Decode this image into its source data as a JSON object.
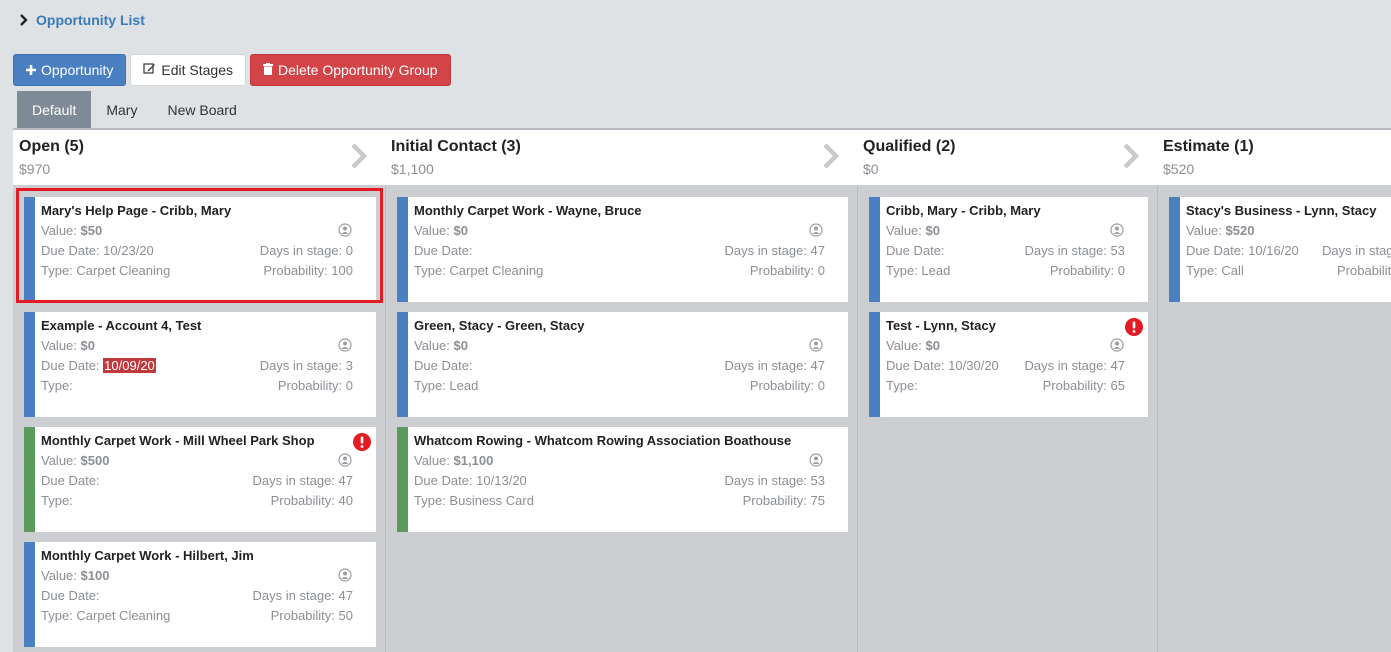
{
  "header": {
    "title": "Opportunity List",
    "toggle_icon": "chevron-right-icon"
  },
  "toolbar": {
    "add_opportunity": "Opportunity",
    "edit_stages": "Edit Stages",
    "delete_group": "Delete Opportunity Group"
  },
  "tabs": [
    {
      "label": "Default",
      "active": true
    },
    {
      "label": "Mary",
      "active": false
    },
    {
      "label": "New Board",
      "active": false
    }
  ],
  "stages": [
    {
      "name": "Open (5)",
      "total": "$970"
    },
    {
      "name": "Initial Contact (3)",
      "total": "$1,100"
    },
    {
      "name": "Qualified (2)",
      "total": "$0"
    },
    {
      "name": "Estimate (1)",
      "total": "$520"
    }
  ],
  "labels": {
    "value": "Value:",
    "due_date": "Due Date:",
    "type": "Type:",
    "days_in_stage": "Days in stage:",
    "probability": "Probability:"
  },
  "cards": {
    "c1": {
      "title": "Mary's Help Page - Cribb, Mary",
      "value": "$50",
      "due": "10/23/20",
      "days": "0",
      "type": "Carpet Cleaning",
      "probability": "100",
      "stripe": "#4a7fc1",
      "selected": true
    },
    "c2": {
      "title": "Example - Account 4, Test",
      "value": "$0",
      "due": "10/09/20",
      "due_overdue": true,
      "days": "3",
      "type": "",
      "probability": "0",
      "stripe": "#4a7fc1"
    },
    "c3": {
      "title": "Monthly Carpet Work - Mill Wheel Park Shop",
      "value": "$500",
      "due": "",
      "days": "47",
      "type": "",
      "probability": "40",
      "stripe": "#5a9a5a",
      "alert": true
    },
    "c4": {
      "title": "Monthly Carpet Work - Hilbert, Jim",
      "value": "$100",
      "due": "",
      "days": "47",
      "type": "Carpet Cleaning",
      "probability": "50",
      "stripe": "#4a7fc1"
    },
    "c5": {
      "title": "Monthly Carpet Work - Wayne, Bruce",
      "value": "$0",
      "due": "",
      "days": "47",
      "type": "Carpet Cleaning",
      "probability": "0",
      "stripe": "#4a7fc1"
    },
    "c6": {
      "title": "Green, Stacy - Green, Stacy",
      "value": "$0",
      "due": "",
      "days": "47",
      "type": "Lead",
      "probability": "0",
      "stripe": "#4a7fc1"
    },
    "c7": {
      "title": "Whatcom Rowing - Whatcom Rowing Association Boathouse",
      "value": "$1,100",
      "due": "10/13/20",
      "days": "53",
      "type": "Business Card",
      "probability": "75",
      "stripe": "#5a9a5a"
    },
    "c8": {
      "title": "Cribb, Mary - Cribb, Mary",
      "value": "$0",
      "due": "",
      "days": "53",
      "type": "Lead",
      "probability": "0",
      "stripe": "#4a7fc1"
    },
    "c9": {
      "title": "Test - Lynn, Stacy",
      "value": "$0",
      "due": "10/30/20",
      "days": "47",
      "type": "",
      "probability": "65",
      "stripe": "#4a7fc1",
      "alert": true
    },
    "c10": {
      "title": "Stacy's Business - Lynn, Stacy",
      "value": "$520",
      "due": "10/16/20",
      "days": "",
      "type": "Call",
      "probability": "",
      "stripe": "#4a7fc1"
    }
  },
  "colors": {
    "primary": "#4a7fc1",
    "danger": "#d24447",
    "success": "#5a9a5a",
    "selected_outline": "#e31c23"
  }
}
